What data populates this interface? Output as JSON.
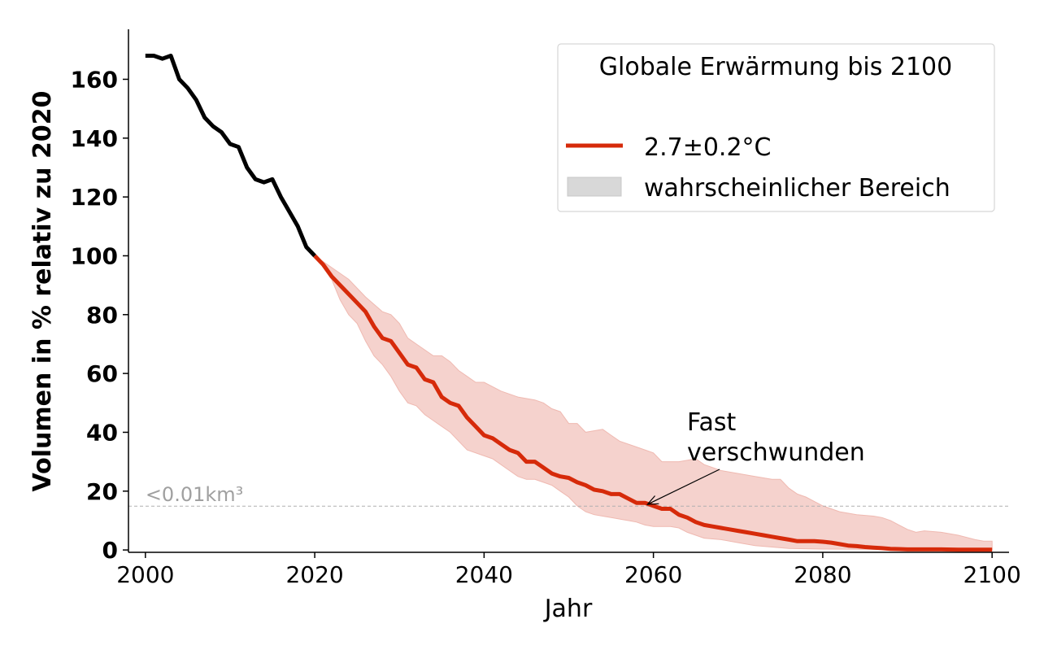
{
  "chart_data": {
    "type": "line",
    "title": "",
    "xlabel": "Jahr",
    "ylabel": "Volumen in % relativ zu 2020",
    "xlim": [
      1998,
      2102
    ],
    "ylim": [
      -0.8,
      177
    ],
    "xticks": [
      2000,
      2020,
      2040,
      2060,
      2080,
      2100
    ],
    "yticks": [
      0,
      20,
      40,
      60,
      80,
      100,
      120,
      140,
      160
    ],
    "grid": false,
    "legend": {
      "title": "Globale Erwärmung bis 2100",
      "placement": "top-right",
      "entries": [
        "2.7±0.2°C",
        "wahrscheinlicher Bereich"
      ]
    },
    "colors": {
      "historical": "#000000",
      "projection": "#d62a0a",
      "band": "#f5d2cd",
      "legend_patch": "#d8d8d8",
      "threshold": "#b0b0b0"
    },
    "historical": {
      "x": [
        2000,
        2001,
        2002,
        2003,
        2004,
        2005,
        2006,
        2007,
        2008,
        2009,
        2010,
        2011,
        2012,
        2013,
        2014,
        2015,
        2016,
        2017,
        2018,
        2019,
        2020
      ],
      "y": [
        168,
        168,
        167,
        168,
        160,
        157,
        153,
        147,
        144,
        142,
        138,
        137,
        130,
        126,
        125,
        126,
        120,
        115,
        110,
        103,
        100
      ]
    },
    "series": [
      {
        "name": "2.7±0.2°C",
        "x": [
          2020,
          2021,
          2022,
          2023,
          2024,
          2025,
          2026,
          2027,
          2028,
          2029,
          2030,
          2031,
          2032,
          2033,
          2034,
          2035,
          2036,
          2037,
          2038,
          2039,
          2040,
          2041,
          2042,
          2043,
          2044,
          2045,
          2046,
          2047,
          2048,
          2049,
          2050,
          2051,
          2052,
          2053,
          2054,
          2055,
          2056,
          2057,
          2058,
          2059,
          2060,
          2061,
          2062,
          2063,
          2064,
          2065,
          2066,
          2067,
          2068,
          2069,
          2070,
          2071,
          2072,
          2073,
          2074,
          2075,
          2076,
          2077,
          2078,
          2079,
          2080,
          2081,
          2082,
          2083,
          2084,
          2085,
          2086,
          2087,
          2088,
          2089,
          2090,
          2092,
          2094,
          2096,
          2098,
          2100
        ],
        "y": [
          100,
          97,
          93,
          90,
          87,
          84,
          81,
          76,
          72,
          71,
          67,
          63,
          62,
          58,
          57,
          52,
          50,
          49,
          45,
          42,
          39,
          38,
          36,
          34,
          33,
          30,
          30,
          28,
          26,
          25,
          24.5,
          23,
          22,
          20.5,
          20,
          19,
          19,
          17.5,
          16,
          16,
          15,
          14,
          14,
          12,
          11,
          9.5,
          8.5,
          8,
          7.5,
          7,
          6.5,
          6,
          5.5,
          5,
          4.5,
          4,
          3.5,
          3,
          3,
          3,
          2.8,
          2.5,
          2,
          1.5,
          1.3,
          1,
          0.8,
          0.6,
          0.4,
          0.3,
          0.2,
          0.2,
          0.2,
          0.1,
          0.1,
          0.1
        ]
      }
    ],
    "band": {
      "name": "wahrscheinlicher Bereich",
      "upper": {
        "x": [
          2020,
          2022,
          2024,
          2026,
          2028,
          2029,
          2030,
          2031,
          2032,
          2034,
          2035,
          2036,
          2037,
          2038,
          2039,
          2040,
          2042,
          2044,
          2046,
          2047,
          2048,
          2049,
          2050,
          2051,
          2052,
          2054,
          2055,
          2056,
          2058,
          2059,
          2060,
          2061,
          2063,
          2065,
          2066,
          2068,
          2070,
          2072,
          2074,
          2075,
          2076,
          2077,
          2078,
          2080,
          2082,
          2084,
          2086,
          2087,
          2088,
          2089,
          2090,
          2091,
          2092,
          2094,
          2096,
          2098,
          2099,
          2100
        ],
        "y": [
          100,
          96,
          92,
          86,
          81,
          80,
          77,
          72,
          70,
          66,
          66,
          64,
          61,
          59,
          57,
          57,
          54,
          52,
          51,
          50,
          48,
          47,
          43,
          43,
          40,
          41,
          39,
          37,
          35,
          34,
          33,
          30,
          30,
          31,
          29,
          27,
          26,
          25,
          24,
          24,
          21,
          19,
          18,
          15,
          13,
          12,
          11.5,
          11,
          10,
          8.5,
          7,
          6,
          6.5,
          6,
          5,
          3.5,
          3,
          3
        ]
      },
      "lower": {
        "x": [
          2020,
          2022,
          2023,
          2024,
          2025,
          2026,
          2027,
          2028,
          2029,
          2030,
          2031,
          2032,
          2033,
          2034,
          2035,
          2036,
          2037,
          2038,
          2040,
          2041,
          2042,
          2043,
          2044,
          2045,
          2046,
          2047,
          2048,
          2049,
          2050,
          2051,
          2052,
          2053,
          2055,
          2057,
          2058,
          2059,
          2060,
          2062,
          2063,
          2064,
          2065,
          2066,
          2068,
          2070,
          2072,
          2074,
          2076,
          2080,
          2100
        ],
        "y": [
          100,
          92,
          85,
          80,
          77,
          71,
          66,
          63,
          59,
          54,
          50,
          49,
          46,
          44,
          42,
          40,
          37,
          34,
          32,
          31,
          29,
          27,
          25,
          24,
          24,
          23,
          22,
          20,
          18,
          15,
          13,
          12,
          11,
          10,
          9.5,
          8.5,
          8,
          8,
          7.5,
          6,
          5,
          4,
          3.5,
          2.5,
          1.5,
          1,
          0.5,
          0.3,
          0
        ]
      }
    },
    "threshold": {
      "y": 14.9,
      "label": "<0.01km³"
    },
    "annotation": {
      "line1": "Fast",
      "line2": "verschwunden",
      "target": [
        2059.3,
        15.5
      ],
      "text_at": [
        2064,
        40
      ]
    }
  }
}
